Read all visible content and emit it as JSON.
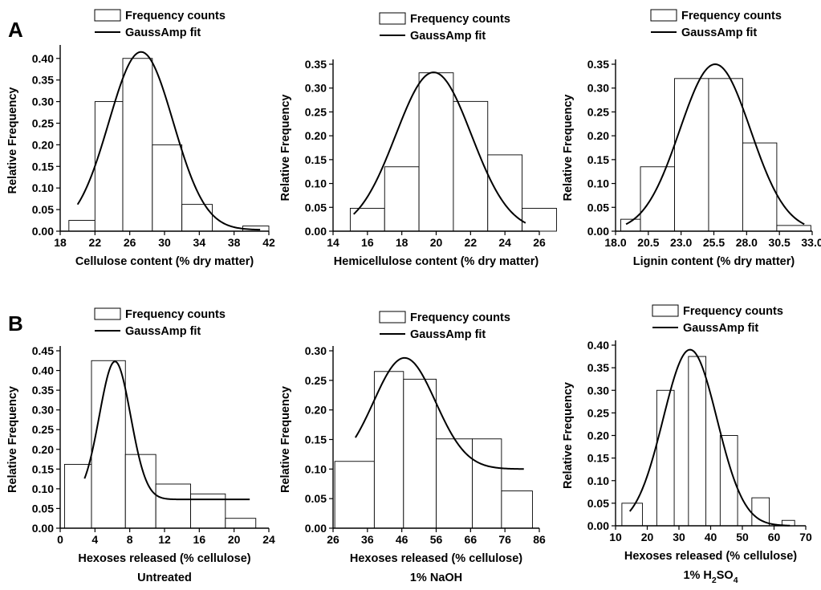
{
  "panel_labels": [
    "A",
    "B"
  ],
  "chart_data": [
    {
      "type": "bar",
      "legend": [
        "Frequency counts",
        "GaussAmp fit"
      ],
      "xlabel": "Cellulose content (% dry matter)",
      "ylabel": "Relative Frequency",
      "xlim": [
        18,
        42
      ],
      "ylim": [
        0,
        0.42
      ],
      "xticks": [
        18,
        22,
        26,
        30,
        34,
        38,
        42
      ],
      "xtick_labels": [
        "18",
        "22",
        "26",
        "30",
        "34",
        "38",
        "42"
      ],
      "yticks": [
        0,
        0.05,
        0.1,
        0.15,
        0.2,
        0.25,
        0.3,
        0.35,
        0.4
      ],
      "ytick_labels": [
        "0.00",
        "0.05",
        "0.10",
        "0.15",
        "0.20",
        "0.25",
        "0.30",
        "0.35",
        "0.40"
      ],
      "bins": [
        [
          19,
          22
        ],
        [
          22,
          25.2
        ],
        [
          25.2,
          28.6
        ],
        [
          28.6,
          32
        ],
        [
          32,
          35.5
        ],
        [
          35.5,
          39
        ],
        [
          39,
          42
        ]
      ],
      "values": [
        0.025,
        0.3,
        0.4,
        0.2,
        0.062,
        0.0,
        0.012
      ],
      "fit": {
        "x": [
          20,
          41
        ],
        "y0": 0.003,
        "xc": 27.3,
        "w": 3.7,
        "A": 0.412
      }
    },
    {
      "type": "bar",
      "legend": [
        "Frequency counts",
        "GaussAmp fit"
      ],
      "xlabel": "Hemicellulose content (% dry matter)",
      "ylabel": "Relative Frequency",
      "xlim": [
        14,
        26
      ],
      "ylim": [
        0,
        0.35
      ],
      "xticks": [
        14,
        16,
        18,
        20,
        22,
        24,
        26
      ],
      "xtick_labels": [
        "14",
        "16",
        "18",
        "20",
        "22",
        "24",
        "26"
      ],
      "yticks": [
        0,
        0.05,
        0.1,
        0.15,
        0.2,
        0.25,
        0.3,
        0.35
      ],
      "ytick_labels": [
        "0.00",
        "0.05",
        "0.10",
        "0.15",
        "0.20",
        "0.25",
        "0.30",
        "0.35"
      ],
      "bins": [
        [
          15,
          17
        ],
        [
          17,
          19
        ],
        [
          19,
          21
        ],
        [
          21,
          23
        ],
        [
          23,
          25
        ],
        [
          25,
          27
        ]
      ],
      "values": [
        0.048,
        0.135,
        0.332,
        0.272,
        0.16,
        0.048
      ],
      "fit": {
        "x": [
          15.2,
          25.2
        ],
        "y0": 0.0,
        "xc": 19.85,
        "w": 2.2,
        "A": 0.333
      }
    },
    {
      "type": "bar",
      "legend": [
        "Frequency counts",
        "GaussAmp fit"
      ],
      "xlabel": "Lignin content (% dry matter)",
      "ylabel": "Relative Frequency",
      "xlim": [
        18,
        33
      ],
      "ylim": [
        0,
        0.35
      ],
      "xticks": [
        18,
        20.5,
        23,
        25.5,
        28,
        30.5,
        33
      ],
      "xtick_labels": [
        "18.0",
        "20.5",
        "23.0",
        "25.5",
        "28.0",
        "30.5",
        "33.0"
      ],
      "yticks": [
        0,
        0.05,
        0.1,
        0.15,
        0.2,
        0.25,
        0.3,
        0.35
      ],
      "ytick_labels": [
        "0.00",
        "0.05",
        "0.10",
        "0.15",
        "0.20",
        "0.25",
        "0.30",
        "0.35"
      ],
      "bins": [
        [
          18.4,
          19.9
        ],
        [
          19.9,
          22.5
        ],
        [
          22.5,
          25.1
        ],
        [
          25.1,
          27.7
        ],
        [
          27.7,
          30.3
        ],
        [
          30.3,
          32.9
        ]
      ],
      "values": [
        0.025,
        0.135,
        0.32,
        0.32,
        0.185,
        0.012
      ],
      "fit": {
        "x": [
          18.8,
          32.4
        ],
        "y0": 0.0,
        "xc": 25.6,
        "w": 2.7,
        "A": 0.35
      }
    },
    {
      "type": "bar",
      "legend": [
        "Frequency counts",
        "GaussAmp fit"
      ],
      "xlabel": "Hexoses released (% cellulose)",
      "xlabel2": "Untreated",
      "ylabel": "Relative Frequency",
      "xlim": [
        0,
        24
      ],
      "ylim": [
        0,
        0.45
      ],
      "xticks": [
        0,
        4,
        8,
        12,
        16,
        20,
        24
      ],
      "xtick_labels": [
        "0",
        "4",
        "8",
        "12",
        "16",
        "20",
        "24"
      ],
      "yticks": [
        0,
        0.05,
        0.1,
        0.15,
        0.2,
        0.25,
        0.3,
        0.35,
        0.4,
        0.45
      ],
      "ytick_labels": [
        "0.00",
        "0.05",
        "0.10",
        "0.15",
        "0.20",
        "0.25",
        "0.30",
        "0.35",
        "0.40",
        "0.45"
      ],
      "bins": [
        [
          0.5,
          3.6
        ],
        [
          3.6,
          7.5
        ],
        [
          7.5,
          11
        ],
        [
          11,
          15
        ],
        [
          15,
          19
        ],
        [
          19,
          22.5
        ]
      ],
      "values": [
        0.162,
        0.425,
        0.187,
        0.112,
        0.087,
        0.025
      ],
      "fit": {
        "x": [
          2.8,
          21.8
        ],
        "y0": 0.073,
        "xc": 6.3,
        "w": 1.8,
        "A": 0.35
      }
    },
    {
      "type": "bar",
      "legend": [
        "Frequency counts",
        "GaussAmp fit"
      ],
      "xlabel": "Hexoses released (% cellulose)",
      "xlabel2": "1% NaOH",
      "ylabel": "Relative Frequency",
      "xlim": [
        26,
        86
      ],
      "ylim": [
        0,
        0.3
      ],
      "xticks": [
        26,
        36,
        46,
        56,
        66,
        76,
        86
      ],
      "xtick_labels": [
        "26",
        "36",
        "46",
        "56",
        "66",
        "76",
        "86"
      ],
      "yticks": [
        0,
        0.05,
        0.1,
        0.15,
        0.2,
        0.25,
        0.3
      ],
      "ytick_labels": [
        "0.00",
        "0.05",
        "0.10",
        "0.15",
        "0.20",
        "0.25",
        "0.30"
      ],
      "bins": [
        [
          26.5,
          38
        ],
        [
          38,
          46.5
        ],
        [
          46.5,
          56
        ],
        [
          56,
          66.5
        ],
        [
          66.5,
          75
        ],
        [
          75,
          84
        ]
      ],
      "values": [
        0.113,
        0.265,
        0.252,
        0.151,
        0.151,
        0.063
      ],
      "fit": {
        "x": [
          32.5,
          81.5
        ],
        "y0": 0.1,
        "xc": 46.8,
        "w": 9.0,
        "A": 0.188
      }
    },
    {
      "type": "bar",
      "legend": [
        "Frequency counts",
        "GaussAmp fit"
      ],
      "xlabel": "Hexoses released (% cellulose)",
      "xlabel2": "1% H",
      "xlabel2_sub": "2",
      "xlabel2_mid": "SO",
      "xlabel2_sub2": "4",
      "ylabel": "Relative Frequency",
      "xlim": [
        10,
        70
      ],
      "ylim": [
        0,
        0.4
      ],
      "xticks": [
        10,
        20,
        30,
        40,
        50,
        60,
        70
      ],
      "xtick_labels": [
        "10",
        "20",
        "30",
        "40",
        "50",
        "60",
        "70"
      ],
      "yticks": [
        0,
        0.05,
        0.1,
        0.15,
        0.2,
        0.25,
        0.3,
        0.35,
        0.4
      ],
      "ytick_labels": [
        "0.00",
        "0.05",
        "0.10",
        "0.15",
        "0.20",
        "0.25",
        "0.30",
        "0.35",
        "0.40"
      ],
      "bins": [
        [
          12,
          18.5
        ],
        [
          23,
          28.5
        ],
        [
          33,
          38.5
        ],
        [
          43,
          48.5
        ],
        [
          53,
          58.5
        ],
        [
          62.5,
          66.5
        ]
      ],
      "values": [
        0.05,
        0.3,
        0.375,
        0.2,
        0.062,
        0.012
      ],
      "fit": {
        "x": [
          14.5,
          65
        ],
        "y0": 0.0,
        "xc": 33.5,
        "w": 8.5,
        "A": 0.39
      }
    }
  ]
}
